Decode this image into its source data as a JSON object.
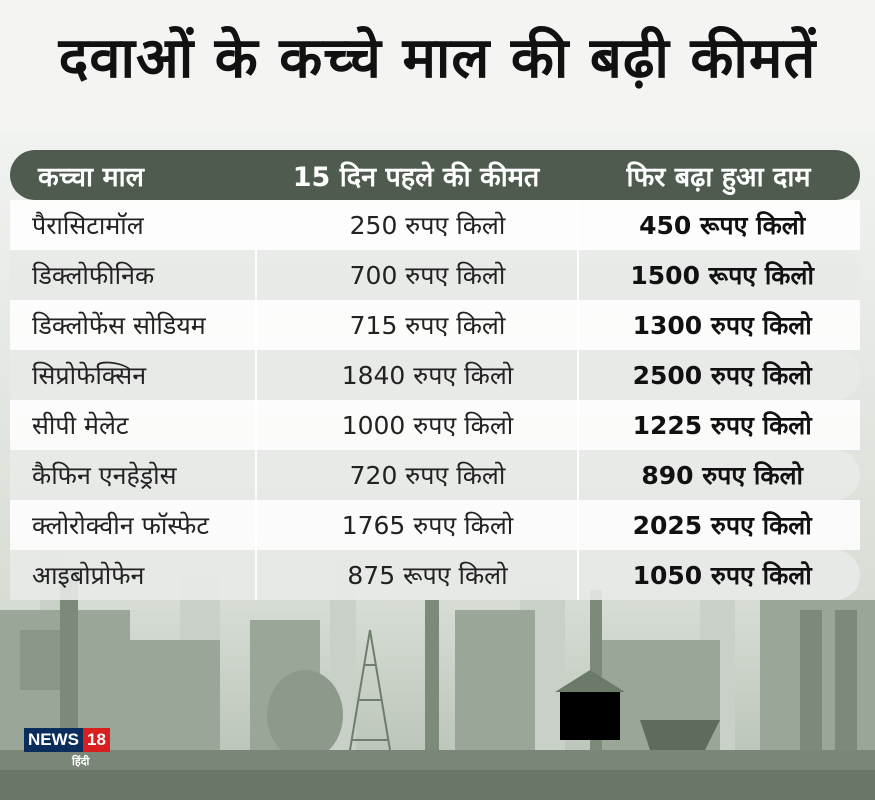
{
  "title": "दवाओं के कच्चे माल की बढ़ी कीमतें",
  "table": {
    "headers": [
      "कच्चा माल",
      "15 दिन पहले की कीमत",
      "फिर बढ़ा हुआ दाम"
    ],
    "rows": [
      {
        "item": "पैरासिटामॉल",
        "old_price": "250 रुपए किलो",
        "new_price": "450 रूपए किलो"
      },
      {
        "item": "डिक्लोफीनिक",
        "old_price": "700 रुपए किलो",
        "new_price": "1500 रूपए किलो"
      },
      {
        "item": "डिक्लोफेंस सोडियम",
        "old_price": "715 रुपए किलो",
        "new_price": "1300 रुपए किलो"
      },
      {
        "item": "सिप्रोफेक्सिन",
        "old_price": "1840 रुपए किलो",
        "new_price": "2500 रुपए किलो"
      },
      {
        "item": "सीपी मेलेट",
        "old_price": "1000 रुपए किलो",
        "new_price": "1225 रुपए किलो"
      },
      {
        "item": "कैफिन एनहेड्रोस",
        "old_price": "720 रुपए किलो",
        "new_price": "890 रुपए किलो"
      },
      {
        "item": "क्लोरोक्वीन फॉस्फेट",
        "old_price": "1765 रुपए किलो",
        "new_price": "2025 रुपए किलो"
      },
      {
        "item": "आइबोप्रोफेन",
        "old_price": "875 रूपए किलो",
        "new_price": "1050 रुपए किलो"
      }
    ]
  },
  "logo": {
    "news": "NEWS",
    "num": "18",
    "lang": "हिंदी"
  },
  "colors": {
    "header_bg": "#4e5b4e",
    "industry": "#7c8a7a"
  }
}
